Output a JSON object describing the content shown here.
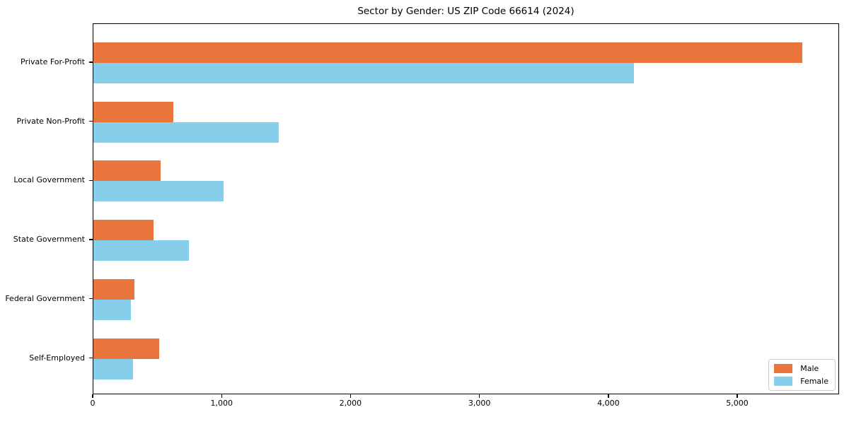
{
  "title": "Sector by Gender: US ZIP Code 66614 (2024)",
  "chart_data": {
    "type": "bar",
    "orientation": "horizontal",
    "title": "Sector by Gender: US ZIP Code 66614 (2024)",
    "categories": [
      "Private For-Profit",
      "Private Non-Profit",
      "Local Government",
      "State Government",
      "Federal Government",
      "Self-Employed"
    ],
    "series": [
      {
        "name": "Male",
        "color": "#e8763c",
        "values": [
          5510,
          620,
          520,
          470,
          320,
          510
        ]
      },
      {
        "name": "Female",
        "color": "#87ceeb",
        "values": [
          4200,
          1440,
          1010,
          740,
          290,
          310
        ]
      }
    ],
    "xlabel": "",
    "ylabel": "",
    "xlim": [
      0,
      5790
    ],
    "xticks": [
      0,
      1000,
      2000,
      3000,
      4000,
      5000
    ],
    "xtick_labels": [
      "0",
      "1,000",
      "2,000",
      "3,000",
      "4,000",
      "5,000"
    ],
    "grid": false,
    "legend": {
      "position": "lower right",
      "entries": [
        "Male",
        "Female"
      ]
    }
  }
}
